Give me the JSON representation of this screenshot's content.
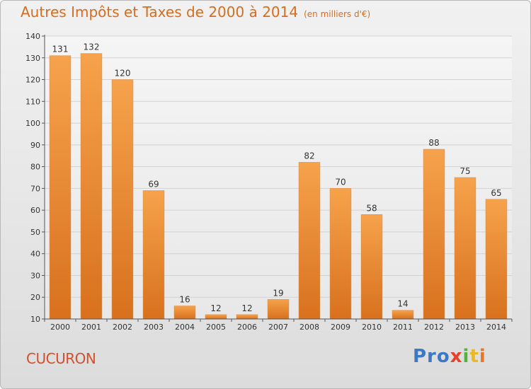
{
  "chart_data": {
    "type": "bar",
    "title": "Autres Impôts et Taxes de 2000 à 2014",
    "unit_label": "(en milliers d'€)",
    "categories": [
      "2000",
      "2001",
      "2002",
      "2003",
      "2004",
      "2005",
      "2006",
      "2007",
      "2008",
      "2009",
      "2010",
      "2011",
      "2012",
      "2013",
      "2014"
    ],
    "values": [
      131,
      132,
      120,
      69,
      16,
      12,
      12,
      19,
      82,
      70,
      58,
      14,
      88,
      75,
      65
    ],
    "ylim": [
      10,
      140
    ],
    "yticks": [
      10,
      20,
      30,
      40,
      50,
      60,
      70,
      80,
      90,
      100,
      110,
      120,
      130,
      140
    ],
    "grid": true,
    "bar_color": "#f0953d"
  },
  "footer": {
    "city": "CUCURON",
    "logo": [
      "Pro",
      "x",
      "i",
      "t",
      "i"
    ]
  }
}
